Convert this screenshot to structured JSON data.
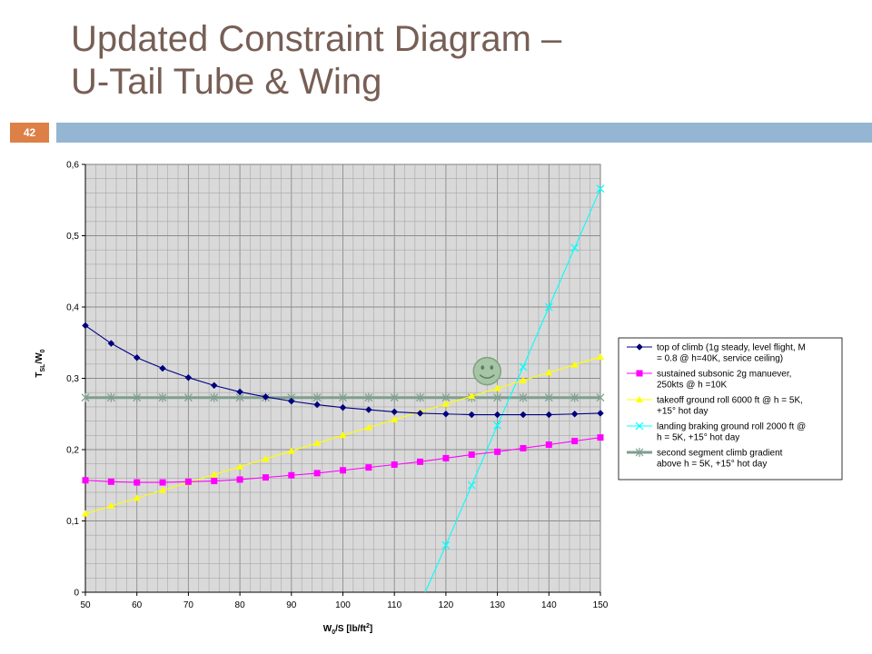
{
  "slide": {
    "title_line1": "Updated Constraint Diagram –",
    "title_line2": "U-Tail Tube & Wing",
    "page_number": "42"
  },
  "colors": {
    "title": "#775f55",
    "accent_bar": "#94b6d2",
    "badge": "#dd8047",
    "plot_bg": "#d9d9d9"
  },
  "chart_data": {
    "type": "line",
    "title": "",
    "xlabel_main": "W",
    "xlabel_sub": "0",
    "xlabel_rest": "/S [lb/ft",
    "xlabel_sup": "2",
    "xlabel_end": "]",
    "ylabel_main": "T",
    "ylabel_sub1": "SL",
    "ylabel_mid": "/W",
    "ylabel_sub2": "0",
    "xlim": [
      50,
      150
    ],
    "ylim": [
      0,
      0.6
    ],
    "x_ticks": [
      "50",
      "60",
      "70",
      "80",
      "90",
      "100",
      "110",
      "120",
      "130",
      "140",
      "150"
    ],
    "y_ticks": [
      "0",
      "0,1",
      "0,2",
      "0,3",
      "0,4",
      "0,5",
      "0,6"
    ],
    "grid": true,
    "legend_position": "right",
    "series": [
      {
        "name": "top of climb (1g steady, level flight, M = 0.8 @ h=40K, service ceiling)",
        "legend_lines": [
          "top of climb (1g steady, level flight, M",
          "= 0.8 @ h=40K, service ceiling)"
        ],
        "color": "#000080",
        "marker": "diamond",
        "x": [
          50,
          55,
          60,
          65,
          70,
          75,
          80,
          85,
          90,
          95,
          100,
          105,
          110,
          115,
          120,
          125,
          130,
          135,
          140,
          145,
          150
        ],
        "y": [
          0.374,
          0.349,
          0.329,
          0.314,
          0.301,
          0.29,
          0.281,
          0.274,
          0.268,
          0.263,
          0.259,
          0.256,
          0.253,
          0.251,
          0.25,
          0.249,
          0.249,
          0.249,
          0.249,
          0.25,
          0.251
        ]
      },
      {
        "name": "sustained subsonic 2g manuever, 250kts @ h =10K",
        "legend_lines": [
          "sustained subsonic 2g manuever,",
          "250kts @ h =10K"
        ],
        "color": "#ff00ff",
        "marker": "square",
        "x": [
          50,
          55,
          60,
          65,
          70,
          75,
          80,
          85,
          90,
          95,
          100,
          105,
          110,
          115,
          120,
          125,
          130,
          135,
          140,
          145,
          150
        ],
        "y": [
          0.157,
          0.155,
          0.154,
          0.154,
          0.155,
          0.156,
          0.158,
          0.161,
          0.164,
          0.167,
          0.171,
          0.175,
          0.179,
          0.183,
          0.188,
          0.193,
          0.197,
          0.202,
          0.207,
          0.212,
          0.217
        ]
      },
      {
        "name": "takeoff ground roll 6000 ft @ h = 5K, +15° hot day",
        "legend_lines": [
          "takeoff ground roll 6000 ft @ h = 5K,",
          "+15° hot day"
        ],
        "color": "#ffff00",
        "marker": "triangle",
        "x": [
          50,
          55,
          60,
          65,
          70,
          75,
          80,
          85,
          90,
          95,
          100,
          105,
          110,
          115,
          120,
          125,
          130,
          135,
          140,
          145,
          150
        ],
        "y": [
          0.11,
          0.121,
          0.132,
          0.143,
          0.154,
          0.165,
          0.176,
          0.187,
          0.198,
          0.209,
          0.22,
          0.231,
          0.242,
          0.253,
          0.264,
          0.275,
          0.286,
          0.297,
          0.308,
          0.319,
          0.33
        ]
      },
      {
        "name": "landing braking ground roll 2000 ft @ h = 5K, +15° hot day",
        "legend_lines": [
          "landing braking ground roll 2000 ft @",
          "h = 5K, +15° hot day"
        ],
        "color": "#00ffff",
        "marker": "x",
        "x": [
          116,
          120,
          125,
          130,
          135,
          140,
          145,
          150
        ],
        "y": [
          0.0,
          0.066,
          0.15,
          0.234,
          0.316,
          0.4,
          0.483,
          0.566
        ],
        "marker_x": [
          120,
          125,
          130,
          135,
          140,
          145,
          150
        ]
      },
      {
        "name": "second segment climb gradient above h = 5K, +15° hot day",
        "legend_lines": [
          "second segment climb gradient",
          "above h = 5K, +15° hot day"
        ],
        "color": "#7f9f8f",
        "marker": "asterisk",
        "x": [
          50,
          55,
          60,
          65,
          70,
          75,
          80,
          85,
          90,
          95,
          100,
          105,
          110,
          115,
          120,
          125,
          130,
          135,
          140,
          145,
          150
        ],
        "y": [
          0.273,
          0.273,
          0.273,
          0.273,
          0.273,
          0.273,
          0.273,
          0.273,
          0.273,
          0.273,
          0.273,
          0.273,
          0.273,
          0.273,
          0.273,
          0.273,
          0.273,
          0.273,
          0.273,
          0.273,
          0.273
        ]
      }
    ],
    "annotation": {
      "type": "smiley-face",
      "x": 128,
      "y": 0.31
    }
  }
}
